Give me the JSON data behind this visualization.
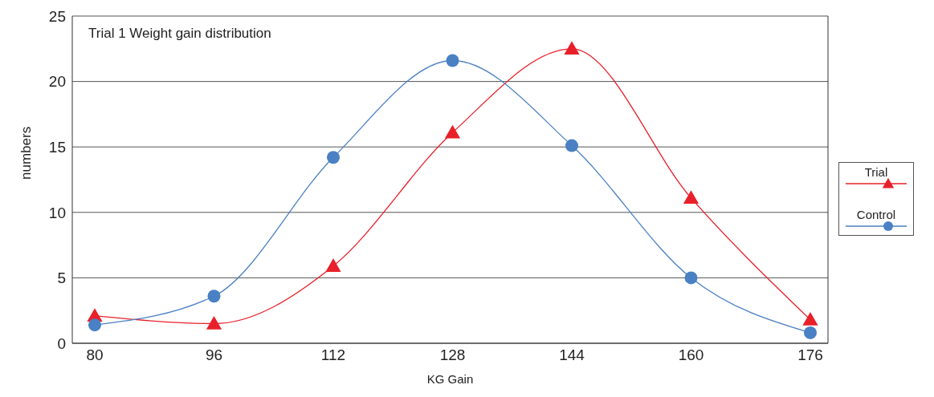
{
  "chart_data": {
    "type": "line",
    "title": "Trial 1 Weight gain distribution",
    "xlabel": "KG Gain",
    "ylabel": "numbers",
    "categories": [
      "80",
      "96",
      "112",
      "128",
      "144",
      "160",
      "176"
    ],
    "series": [
      {
        "name": "Trial",
        "color": "#e8202a",
        "marker": "triangle",
        "values": [
          2.1,
          1.5,
          5.9,
          16.1,
          22.5,
          11.1,
          1.8
        ]
      },
      {
        "name": "Control",
        "color": "#4a80c4",
        "marker": "circle",
        "values": [
          1.4,
          3.6,
          14.2,
          21.6,
          15.1,
          5.0,
          0.8
        ]
      }
    ],
    "ylim": [
      0,
      25
    ],
    "yticks": [
      0,
      5,
      10,
      15,
      20,
      25
    ],
    "grid": "y",
    "legend": "right",
    "line_style": "solid"
  }
}
